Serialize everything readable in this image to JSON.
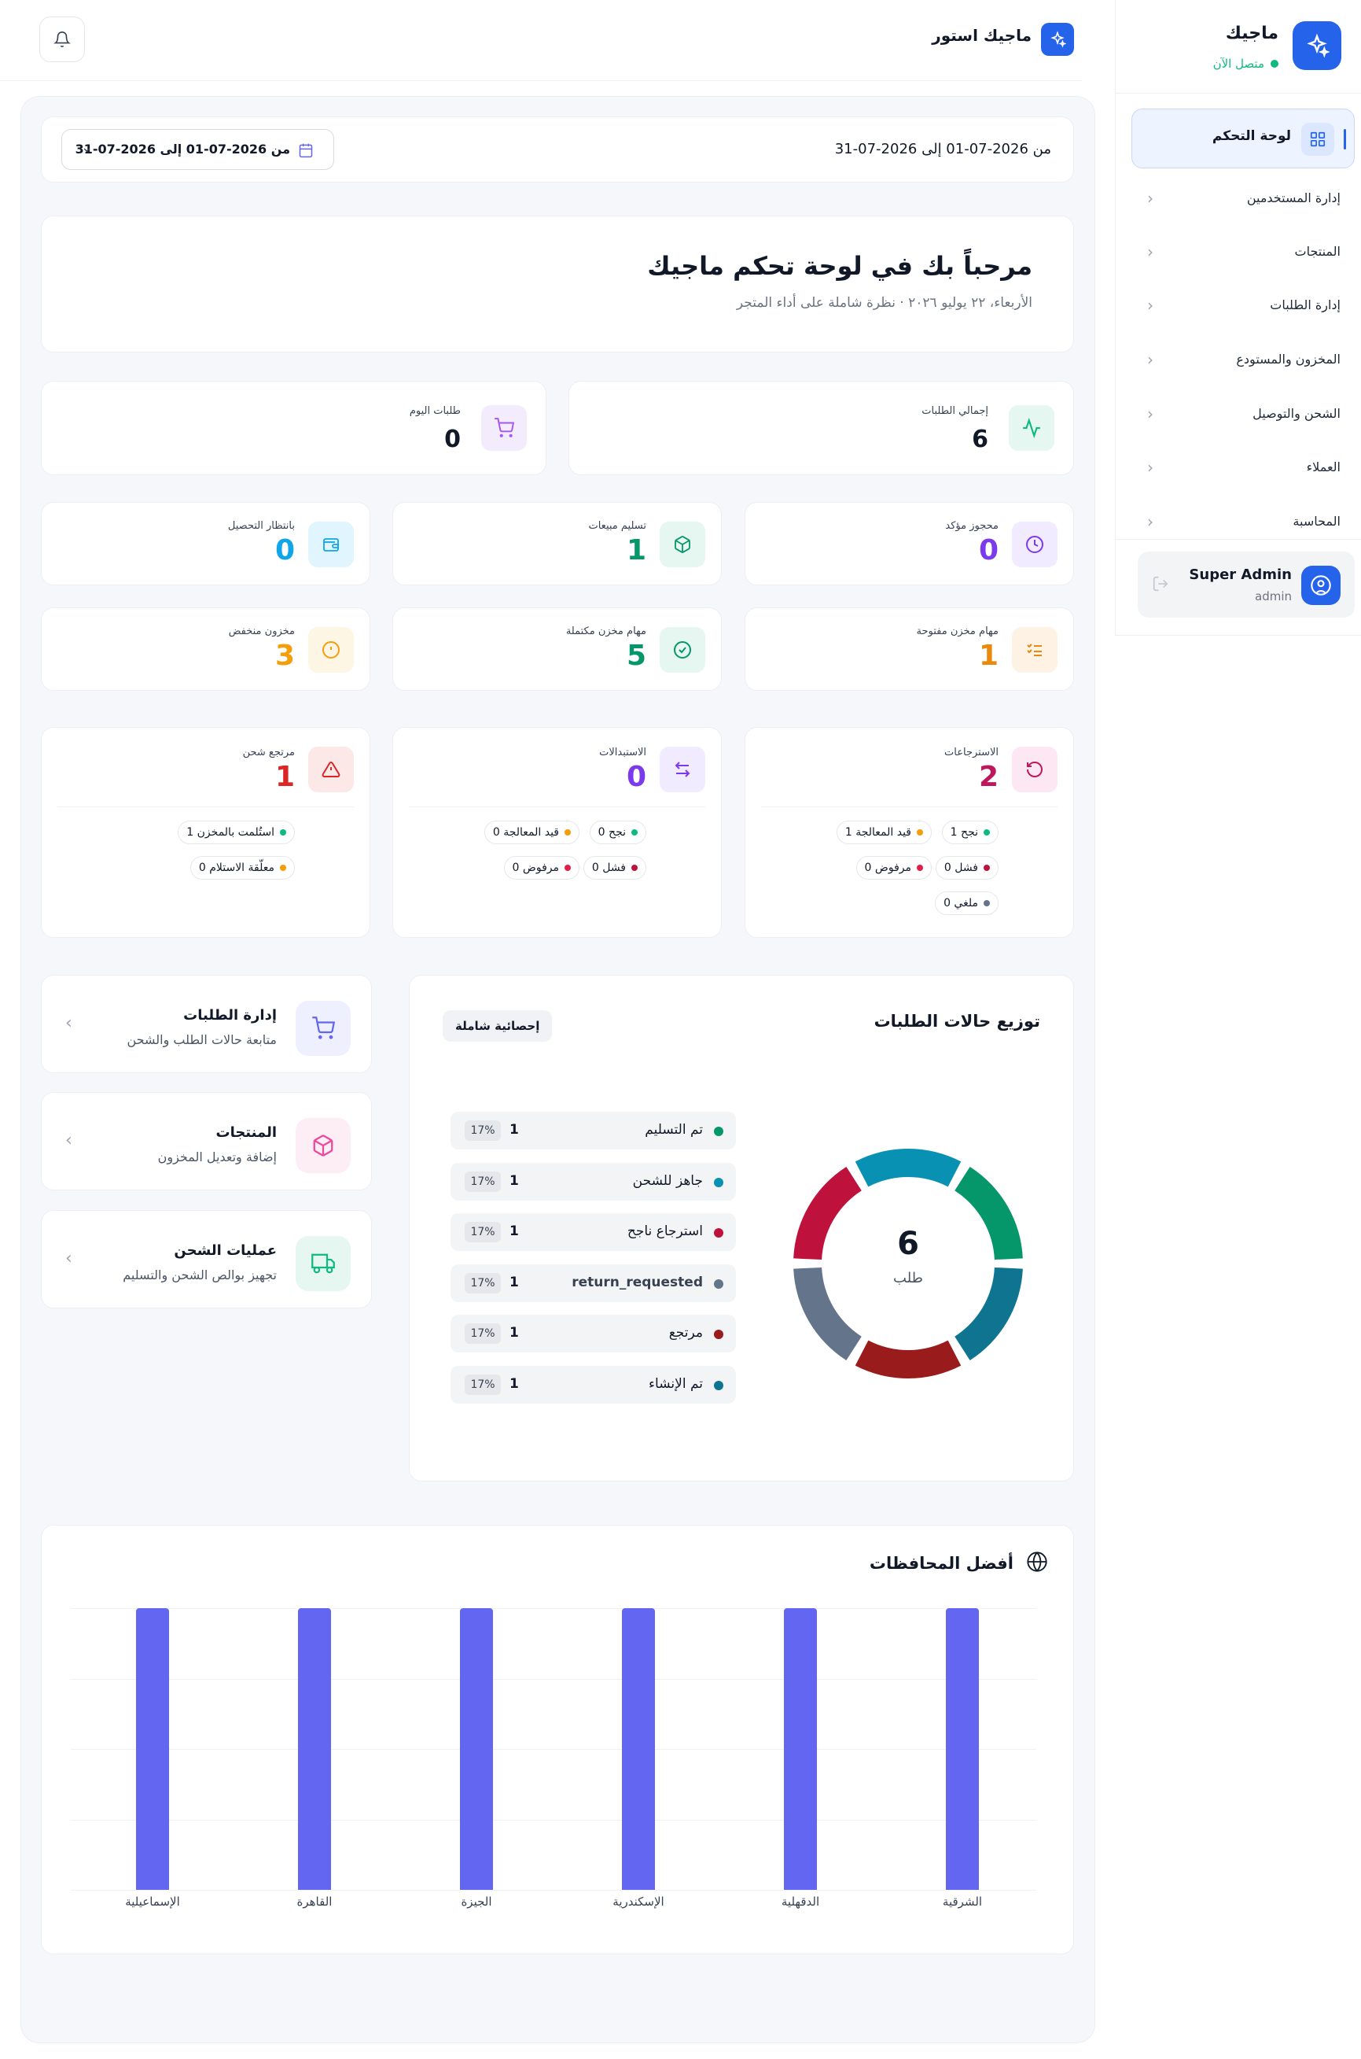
{
  "app": {
    "name": "ماجيك",
    "status": "متصل الآن",
    "store_name": "ماجيك استور"
  },
  "sidebar": {
    "items": [
      {
        "label": "لوحة التحكم"
      },
      {
        "label": "إدارة المستخدمين"
      },
      {
        "label": "المنتجات"
      },
      {
        "label": "إدارة الطلبات"
      },
      {
        "label": "المخزون والمستودع"
      },
      {
        "label": "الشحن والتوصيل"
      },
      {
        "label": "العملاء"
      },
      {
        "label": "المحاسبة"
      }
    ],
    "user": {
      "name": "Super Admin",
      "role": "admin"
    }
  },
  "date_range": {
    "text": "من 2026-07-01 إلى 2026-07-31",
    "picker_label": "من 2026-07-01 إلى 2026-07-31"
  },
  "welcome": {
    "title": "مرحباً بك في لوحة تحكم ماجيك",
    "subtitle": "الأربعاء، ٢٢ يوليو ٢٠٢٦ · نظرة شاملة على أداء المتجر"
  },
  "kpis": {
    "total_orders": {
      "label": "إجمالي الطلبات",
      "value": "6"
    },
    "today_orders": {
      "label": "طلبات اليوم",
      "value": "0"
    }
  },
  "stats": {
    "reserved": {
      "label": "محجوز مؤكد",
      "value": "0",
      "color": "#7c3aed"
    },
    "sales_delivery": {
      "label": "تسليم مبيعات",
      "value": "1",
      "color": "#059669"
    },
    "awaiting_collection": {
      "label": "بانتظار التحصيل",
      "value": "0",
      "color": "#0ea5e9"
    },
    "open_tasks": {
      "label": "مهام مخزن مفتوحة",
      "value": "1",
      "color": "#ea8a0c"
    },
    "done_tasks": {
      "label": "مهام مخزن مكتملة",
      "value": "5",
      "color": "#059669"
    },
    "low_stock": {
      "label": "مخزون منخفض",
      "value": "3",
      "color": "#f59e0b"
    }
  },
  "groups": {
    "returns": {
      "label": "الاسترجاعات",
      "value": "2",
      "color": "#be185d",
      "pills": {
        "success": "نجح 1",
        "processing": "قيد المعالجة 1",
        "failed": "فشل 0",
        "rejected": "مرفوض 0",
        "cancelled": "ملغي 0"
      }
    },
    "exchanges": {
      "label": "الاستبدالات",
      "value": "0",
      "color": "#7c3aed",
      "pills": {
        "success": "نجح 0",
        "processing": "قيد المعالجة 0",
        "failed": "فشل 0",
        "rejected": "مرفوض 0"
      }
    },
    "shipping_returns": {
      "label": "مرتجع شحن",
      "value": "1",
      "color": "#dc2626",
      "pills": {
        "received": "استُلمت بالمخزن 1",
        "pending": "معلّقة الاستلام 0"
      }
    }
  },
  "quick_links": [
    {
      "title": "إدارة الطلبات",
      "subtitle": "متابعة حالات الطلب والشحن"
    },
    {
      "title": "المنتجات",
      "subtitle": "إضافة وتعديل المخزون"
    },
    {
      "title": "عمليات الشحن",
      "subtitle": "تجهيز بوالص الشحن والتسليم"
    }
  ],
  "status_chart": {
    "title": "توزيع حالات الطلبات",
    "badge": "إحصائية شاملة",
    "center_value": "6",
    "center_label": "طلب"
  },
  "chart_data": [
    {
      "type": "pie",
      "title": "توزيع حالات الطلبات",
      "categories": [
        "تم التسليم",
        "جاهز للشحن",
        "استرجاع ناجح",
        "return_requested",
        "مرتجع",
        "تم الإنشاء"
      ],
      "values": [
        1,
        1,
        1,
        1,
        1,
        1
      ],
      "percent_labels": [
        "17%",
        "17%",
        "17%",
        "17%",
        "17%",
        "17%"
      ],
      "colors": [
        "#059669",
        "#0891b2",
        "#be123c",
        "#64748b",
        "#991b1b",
        "#0e7490"
      ]
    },
    {
      "type": "bar",
      "title": "أفضل المحافظات",
      "categories": [
        "الشرقية",
        "الدقهلية",
        "الإسكندرية",
        "الجيزة",
        "القاهرة",
        "الإسماعيلية"
      ],
      "values": [
        1,
        1,
        1,
        1,
        1,
        1
      ],
      "ylim": [
        0,
        1
      ],
      "grid": true,
      "color": "#6366f1"
    }
  ]
}
